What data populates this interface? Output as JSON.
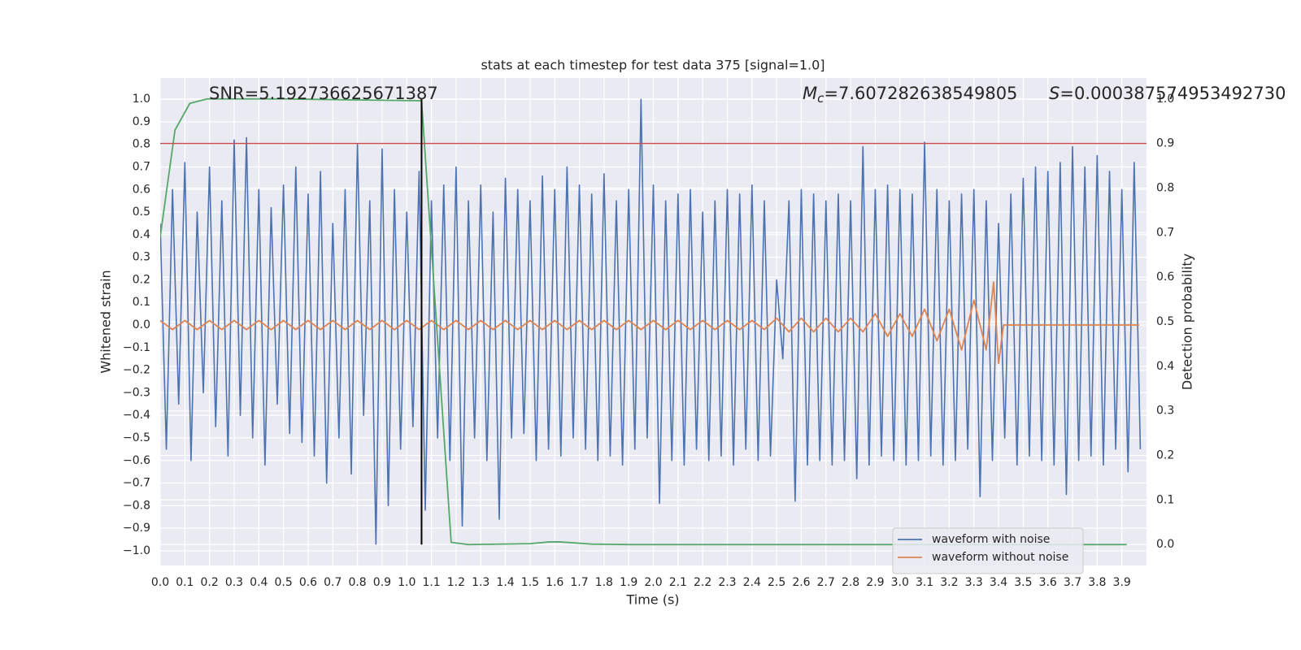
{
  "chart_data": {
    "type": "line",
    "title": "stats at each timestep for test data 375 [signal=1.0]",
    "xlabel": "Time (s)",
    "ylabel": "Whitened strain",
    "y2label": "Detection probability",
    "grid": true,
    "legend": "lower right",
    "annotations": [
      {
        "text": "SNR=5.192736625671387"
      },
      {
        "symbol": "M",
        "subscript": "c",
        "text": "=7.607282638549805"
      },
      {
        "symbol": "S",
        "text": "=0.000387574953492730"
      }
    ],
    "xlim": [
      0,
      4
    ],
    "ylim": [
      -1.065,
      1.094
    ],
    "y2lim": [
      -0.047,
      1.047
    ],
    "xticks": [
      {
        "value": 0,
        "label": "0.0"
      },
      {
        "value": 0.1,
        "label": "0.1"
      },
      {
        "value": 0.2,
        "label": "0.2"
      },
      {
        "value": 0.3,
        "label": "0.3"
      },
      {
        "value": 0.4,
        "label": "0.4"
      },
      {
        "value": 0.5,
        "label": "0.5"
      },
      {
        "value": 0.6,
        "label": "0.6"
      },
      {
        "value": 0.7,
        "label": "0.7"
      },
      {
        "value": 0.8,
        "label": "0.8"
      },
      {
        "value": 0.9,
        "label": "0.9"
      },
      {
        "value": 1,
        "label": "1.0"
      },
      {
        "value": 1.1,
        "label": "1.1"
      },
      {
        "value": 1.2,
        "label": "1.2"
      },
      {
        "value": 1.3,
        "label": "1.3"
      },
      {
        "value": 1.4,
        "label": "1.4"
      },
      {
        "value": 1.5,
        "label": "1.5"
      },
      {
        "value": 1.6,
        "label": "1.6"
      },
      {
        "value": 1.7,
        "label": "1.7"
      },
      {
        "value": 1.8,
        "label": "1.8"
      },
      {
        "value": 1.9,
        "label": "1.9"
      },
      {
        "value": 2,
        "label": "2.0"
      },
      {
        "value": 2.1,
        "label": "2.1"
      },
      {
        "value": 2.2,
        "label": "2.2"
      },
      {
        "value": 2.3,
        "label": "2.3"
      },
      {
        "value": 2.4,
        "label": "2.4"
      },
      {
        "value": 2.5,
        "label": "2.5"
      },
      {
        "value": 2.6,
        "label": "2.6"
      },
      {
        "value": 2.7,
        "label": "2.7"
      },
      {
        "value": 2.8,
        "label": "2.8"
      },
      {
        "value": 2.9,
        "label": "2.9"
      },
      {
        "value": 3,
        "label": "3.0"
      },
      {
        "value": 3.1,
        "label": "3.1"
      },
      {
        "value": 3.2,
        "label": "3.2"
      },
      {
        "value": 3.3,
        "label": "3.3"
      },
      {
        "value": 3.4,
        "label": "3.4"
      },
      {
        "value": 3.5,
        "label": "3.5"
      },
      {
        "value": 3.6,
        "label": "3.6"
      },
      {
        "value": 3.7,
        "label": "3.7"
      },
      {
        "value": 3.8,
        "label": "3.8"
      },
      {
        "value": 3.9,
        "label": "3.9"
      }
    ],
    "yticks": [
      {
        "value": -1,
        "label": "−1.0"
      },
      {
        "value": -0.9,
        "label": "−0.9"
      },
      {
        "value": -0.8,
        "label": "−0.8"
      },
      {
        "value": -0.7,
        "label": "−0.7"
      },
      {
        "value": -0.6,
        "label": "−0.6"
      },
      {
        "value": -0.5,
        "label": "−0.5"
      },
      {
        "value": -0.4,
        "label": "−0.4"
      },
      {
        "value": -0.3,
        "label": "−0.3"
      },
      {
        "value": -0.2,
        "label": "−0.2"
      },
      {
        "value": -0.1,
        "label": "−0.1"
      },
      {
        "value": 0,
        "label": "0.0"
      },
      {
        "value": 0.1,
        "label": "0.1"
      },
      {
        "value": 0.2,
        "label": "0.2"
      },
      {
        "value": 0.3,
        "label": "0.3"
      },
      {
        "value": 0.4,
        "label": "0.4"
      },
      {
        "value": 0.5,
        "label": "0.5"
      },
      {
        "value": 0.6,
        "label": "0.6"
      },
      {
        "value": 0.7,
        "label": "0.7"
      },
      {
        "value": 0.8,
        "label": "0.8"
      },
      {
        "value": 0.9,
        "label": "0.9"
      },
      {
        "value": 1,
        "label": "1.0"
      }
    ],
    "y2ticks": [
      {
        "value": 0,
        "label": "0.0"
      },
      {
        "value": 0.1,
        "label": "0.1"
      },
      {
        "value": 0.2,
        "label": "0.2"
      },
      {
        "value": 0.3,
        "label": "0.3"
      },
      {
        "value": 0.4,
        "label": "0.4"
      },
      {
        "value": 0.5,
        "label": "0.5"
      },
      {
        "value": 0.6,
        "label": "0.6"
      },
      {
        "value": 0.7,
        "label": "0.7"
      },
      {
        "value": 0.8,
        "label": "0.8"
      },
      {
        "value": 0.9,
        "label": "0.9"
      },
      {
        "value": 1,
        "label": "1.0"
      }
    ],
    "series": [
      {
        "name": "waveform with noise",
        "color": "#4c72b0",
        "x": [
          0,
          0.025,
          0.05,
          0.075,
          0.1,
          0.125,
          0.15,
          0.175,
          0.2,
          0.225,
          0.25,
          0.275,
          0.3,
          0.325,
          0.35,
          0.375,
          0.4,
          0.425,
          0.45,
          0.475,
          0.5,
          0.525,
          0.55,
          0.575,
          0.6,
          0.625,
          0.65,
          0.675,
          0.7,
          0.725,
          0.75,
          0.775,
          0.8,
          0.825,
          0.85,
          0.875,
          0.9,
          0.925,
          0.95,
          0.975,
          1,
          1.025,
          1.05,
          1.075,
          1.1,
          1.125,
          1.15,
          1.175,
          1.2,
          1.225,
          1.25,
          1.275,
          1.3,
          1.325,
          1.35,
          1.375,
          1.4,
          1.425,
          1.45,
          1.475,
          1.5,
          1.525,
          1.55,
          1.575,
          1.6,
          1.625,
          1.65,
          1.675,
          1.7,
          1.725,
          1.75,
          1.775,
          1.8,
          1.825,
          1.85,
          1.875,
          1.9,
          1.925,
          1.95,
          1.975,
          2,
          2.025,
          2.05,
          2.075,
          2.1,
          2.125,
          2.15,
          2.175,
          2.2,
          2.225,
          2.25,
          2.275,
          2.3,
          2.325,
          2.35,
          2.375,
          2.4,
          2.425,
          2.45,
          2.475,
          2.5,
          2.525,
          2.55,
          2.575,
          2.6,
          2.625,
          2.65,
          2.675,
          2.7,
          2.725,
          2.75,
          2.775,
          2.8,
          2.825,
          2.85,
          2.875,
          2.9,
          2.925,
          2.95,
          2.975,
          3,
          3.025,
          3.05,
          3.075,
          3.1,
          3.125,
          3.15,
          3.175,
          3.2,
          3.225,
          3.25,
          3.275,
          3.3,
          3.325,
          3.35,
          3.375,
          3.4,
          3.425,
          3.45,
          3.475,
          3.5,
          3.525,
          3.55,
          3.575,
          3.6,
          3.625,
          3.65,
          3.675,
          3.7,
          3.725,
          3.75,
          3.775,
          3.8,
          3.825,
          3.85,
          3.875,
          3.9,
          3.925,
          3.95,
          3.975
        ],
        "values": [
          0.45,
          -0.55,
          0.6,
          -0.35,
          0.72,
          -0.6,
          0.5,
          -0.3,
          0.7,
          -0.45,
          0.55,
          -0.58,
          0.82,
          -0.4,
          0.83,
          -0.5,
          0.6,
          -0.62,
          0.52,
          -0.35,
          0.62,
          -0.48,
          0.7,
          -0.52,
          0.58,
          -0.58,
          0.68,
          -0.7,
          0.45,
          -0.5,
          0.6,
          -0.66,
          0.8,
          -0.4,
          0.55,
          -0.97,
          0.78,
          -0.8,
          0.6,
          -0.55,
          0.5,
          -0.45,
          0.68,
          -0.82,
          0.55,
          -0.5,
          0.62,
          -0.6,
          0.7,
          -0.89,
          0.55,
          -0.5,
          0.62,
          -0.6,
          0.5,
          -0.86,
          0.65,
          -0.5,
          0.6,
          -0.48,
          0.55,
          -0.6,
          0.66,
          -0.55,
          0.6,
          -0.58,
          0.7,
          -0.5,
          0.62,
          -0.55,
          0.58,
          -0.6,
          0.67,
          -0.58,
          0.55,
          -0.62,
          0.6,
          -0.55,
          1.0,
          -0.5,
          0.62,
          -0.79,
          0.55,
          -0.6,
          0.58,
          -0.62,
          0.6,
          -0.55,
          0.5,
          -0.6,
          0.55,
          -0.58,
          0.6,
          -0.62,
          0.58,
          -0.55,
          0.62,
          -0.6,
          0.55,
          -0.58,
          0.2,
          -0.15,
          0.55,
          -0.78,
          0.6,
          -0.62,
          0.58,
          -0.6,
          0.55,
          -0.62,
          0.58,
          -0.6,
          0.55,
          -0.68,
          0.79,
          -0.62,
          0.6,
          -0.58,
          0.62,
          -0.6,
          0.6,
          -0.62,
          0.58,
          -0.6,
          0.81,
          -0.58,
          0.6,
          -0.62,
          0.55,
          -0.6,
          0.58,
          -0.55,
          0.6,
          -0.76,
          0.55,
          -0.6,
          0.45,
          -0.5,
          0.58,
          -0.62,
          0.65,
          -0.58,
          0.7,
          -0.6,
          0.68,
          -0.62,
          0.72,
          -0.75,
          0.79,
          -0.6,
          0.7,
          -0.58,
          0.75,
          -0.62,
          0.68,
          -0.55,
          0.6,
          -0.65,
          0.72,
          -0.55
        ]
      },
      {
        "name": "waveform without noise",
        "color": "#dd8452",
        "x": [
          0,
          0.05,
          0.1,
          0.15,
          0.2,
          0.25,
          0.3,
          0.35,
          0.4,
          0.45,
          0.5,
          0.55,
          0.6,
          0.65,
          0.7,
          0.75,
          0.8,
          0.85,
          0.9,
          0.95,
          1,
          1.05,
          1.1,
          1.15,
          1.2,
          1.25,
          1.3,
          1.35,
          1.4,
          1.45,
          1.5,
          1.55,
          1.6,
          1.65,
          1.7,
          1.75,
          1.8,
          1.85,
          1.9,
          1.95,
          2,
          2.05,
          2.1,
          2.15,
          2.2,
          2.25,
          2.3,
          2.35,
          2.4,
          2.45,
          2.5,
          2.55,
          2.6,
          2.65,
          2.7,
          2.75,
          2.8,
          2.85,
          2.9,
          2.95,
          3,
          3.05,
          3.1,
          3.15,
          3.2,
          3.25,
          3.3,
          3.35,
          3.38,
          3.4,
          3.42,
          3.97
        ],
        "values": [
          0.02,
          -0.02,
          0.02,
          -0.02,
          0.02,
          -0.02,
          0.02,
          -0.02,
          0.02,
          -0.02,
          0.02,
          -0.02,
          0.02,
          -0.02,
          0.02,
          -0.02,
          0.02,
          -0.02,
          0.02,
          -0.02,
          0.02,
          -0.02,
          0.02,
          -0.02,
          0.02,
          -0.02,
          0.02,
          -0.02,
          0.02,
          -0.02,
          0.02,
          -0.02,
          0.02,
          -0.02,
          0.02,
          -0.02,
          0.02,
          -0.02,
          0.02,
          -0.02,
          0.02,
          -0.02,
          0.02,
          -0.02,
          0.02,
          -0.02,
          0.02,
          -0.02,
          0.02,
          -0.02,
          0.03,
          -0.03,
          0.03,
          -0.03,
          0.03,
          -0.03,
          0.03,
          -0.03,
          0.05,
          -0.05,
          0.05,
          -0.05,
          0.07,
          -0.07,
          0.07,
          -0.11,
          0.11,
          -0.11,
          0.19,
          -0.17,
          0,
          0
        ]
      },
      {
        "color": "#55a868",
        "axis": "y2",
        "x": [
          0,
          0.06,
          0.12,
          0.19,
          0.5,
          1.06,
          1.18,
          1.25,
          1.5,
          1.58,
          1.62,
          1.75,
          1.9,
          3.92
        ],
        "values": [
          0.69,
          0.93,
          0.99,
          1.0,
          1.0,
          0.996,
          0.005,
          0.0,
          0.002,
          0.006,
          0.006,
          0.001,
          0.0,
          0.0
        ]
      }
    ],
    "vline": {
      "x": 1.06,
      "y2": [
        0,
        1
      ],
      "color": "#000000"
    },
    "hline": {
      "y2": 0.9,
      "color": "#c44e52"
    }
  }
}
